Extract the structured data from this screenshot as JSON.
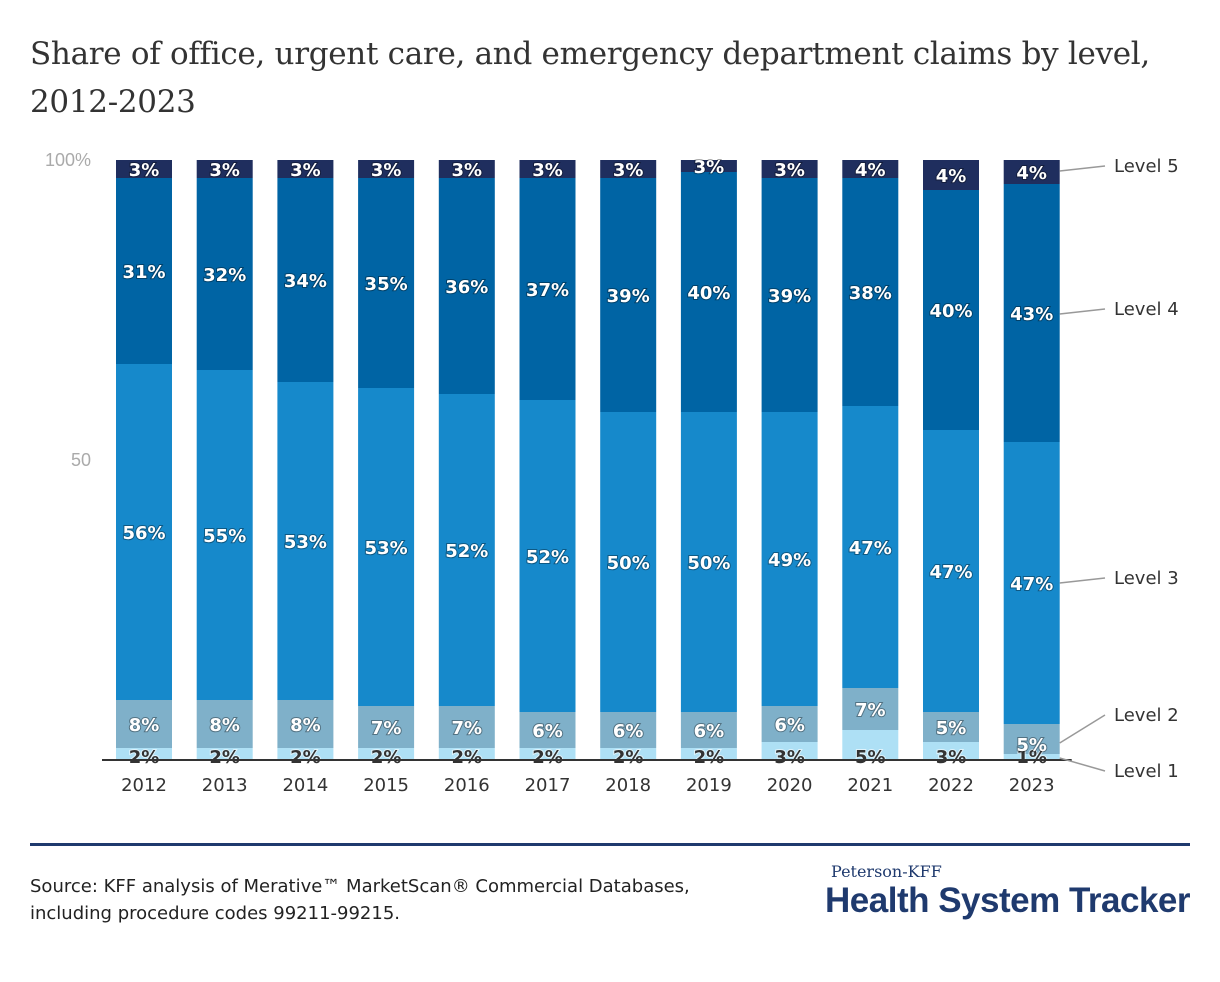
{
  "title": "Share of office, urgent care, and emergency department claims by level, 2012-2023",
  "source": "Source: KFF analysis of Merative™ MarketScan® Commercial Databases, including procedure codes 99211-99215.",
  "brand": {
    "top": "Peterson-KFF",
    "main": "Health System Tracker"
  },
  "colors": {
    "level1": "#aee0f5",
    "level2": "#7fb0c9",
    "level3": "#1689cb",
    "level4": "#0064a4",
    "level5": "#1f2e5e",
    "axis": "#333333",
    "leader": "#999999"
  },
  "chart_data": {
    "type": "bar",
    "stacked": true,
    "title": "Share of office, urgent care, and emergency department claims by level, 2012-2023",
    "xlabel": "",
    "ylabel": "",
    "ylim": [
      0,
      100
    ],
    "yticks": [
      {
        "value": 100,
        "label": "100%"
      },
      {
        "value": 50,
        "label": "50"
      }
    ],
    "grid": false,
    "legend_placement": "right (direct labels)",
    "categories": [
      "2012",
      "2013",
      "2014",
      "2015",
      "2016",
      "2017",
      "2018",
      "2019",
      "2020",
      "2021",
      "2022",
      "2023"
    ],
    "series": [
      {
        "name": "Level 1",
        "values": [
          2,
          2,
          2,
          2,
          2,
          2,
          2,
          2,
          3,
          5,
          3,
          1
        ],
        "labels": [
          "2%",
          "2%",
          "2%",
          "2%",
          "2%",
          "2%",
          "2%",
          "2%",
          "3%",
          "5%",
          "3%",
          "1%"
        ]
      },
      {
        "name": "Level 2",
        "values": [
          8,
          8,
          8,
          7,
          7,
          6,
          6,
          6,
          6,
          7,
          5,
          5
        ],
        "labels": [
          "8%",
          "8%",
          "8%",
          "7%",
          "7%",
          "6%",
          "6%",
          "6%",
          "6%",
          "7%",
          "5%",
          "5%"
        ]
      },
      {
        "name": "Level 3",
        "values": [
          56,
          55,
          53,
          53,
          52,
          52,
          50,
          50,
          49,
          47,
          47,
          47
        ],
        "labels": [
          "56%",
          "55%",
          "53%",
          "53%",
          "52%",
          "52%",
          "50%",
          "50%",
          "49%",
          "47%",
          "47%",
          "47%"
        ]
      },
      {
        "name": "Level 4",
        "values": [
          31,
          32,
          34,
          35,
          36,
          37,
          39,
          40,
          39,
          38,
          40,
          43
        ],
        "labels": [
          "31%",
          "32%",
          "34%",
          "35%",
          "36%",
          "37%",
          "39%",
          "40%",
          "39%",
          "38%",
          "40%",
          "43%"
        ]
      },
      {
        "name": "Level 5",
        "values": [
          3,
          3,
          3,
          3,
          3,
          3,
          3,
          3,
          3,
          4,
          4,
          4
        ],
        "labels": [
          "3%",
          "3%",
          "3%",
          "3%",
          "3%",
          "3%",
          "3%",
          "3%",
          "3%",
          "4%",
          "4%",
          "4%"
        ]
      }
    ]
  }
}
